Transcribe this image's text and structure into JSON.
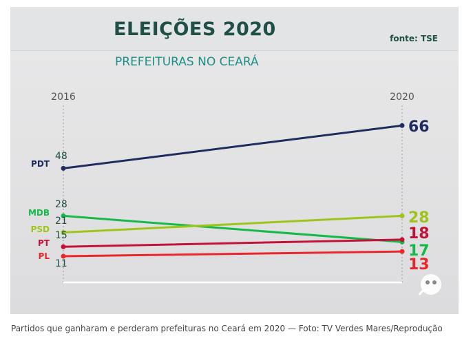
{
  "chart_data": {
    "type": "line",
    "title": "ELEIÇÕES 2020",
    "subtitle": "PREFEITURAS NO CEARÁ",
    "source": "fonte: TSE",
    "x": [
      "2016",
      "2020"
    ],
    "ylim": [
      0,
      70
    ],
    "series": [
      {
        "name": "PDT",
        "values": [
          48,
          66
        ],
        "color": "#1e2c5e"
      },
      {
        "name": "MDB",
        "values": [
          28,
          17
        ],
        "color": "#16b84a"
      },
      {
        "name": "PSD",
        "values": [
          21,
          28
        ],
        "color": "#9fc419"
      },
      {
        "name": "PT",
        "values": [
          15,
          18
        ],
        "color": "#c2123a"
      },
      {
        "name": "PL",
        "values": [
          11,
          13
        ],
        "color": "#e8262b"
      }
    ]
  },
  "caption": "Partidos que ganharam e perderam prefeituras no Ceará em 2020 — Foto: TV Verdes Mares/Reprodução"
}
